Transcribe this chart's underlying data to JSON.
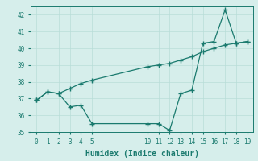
{
  "xlabel": "Humidex (Indice chaleur)",
  "background_color": "#d6eeeb",
  "line_color": "#1a7a6e",
  "grid_color": "#b8ddd8",
  "x_line1": [
    0,
    1,
    2,
    3,
    4,
    5,
    10,
    11,
    12,
    13,
    14,
    15,
    16,
    17,
    18,
    19
  ],
  "y_line1": [
    36.9,
    37.4,
    37.3,
    36.5,
    36.6,
    35.5,
    35.5,
    35.5,
    35.1,
    37.3,
    37.5,
    40.3,
    40.4,
    42.3,
    40.3,
    40.4
  ],
  "x_line2": [
    0,
    1,
    2,
    3,
    4,
    5,
    10,
    11,
    12,
    13,
    14,
    15,
    16,
    17,
    18,
    19
  ],
  "y_line2": [
    36.9,
    37.4,
    37.3,
    37.6,
    37.9,
    38.1,
    38.9,
    39.0,
    39.1,
    39.3,
    39.5,
    39.8,
    40.0,
    40.2,
    40.3,
    40.4
  ],
  "ylim": [
    35,
    42.5
  ],
  "xlim": [
    -0.5,
    19.5
  ],
  "yticks": [
    35,
    36,
    37,
    38,
    39,
    40,
    41,
    42
  ],
  "xticks": [
    0,
    1,
    2,
    3,
    4,
    5,
    10,
    11,
    12,
    13,
    14,
    15,
    16,
    17,
    18,
    19
  ],
  "marker": "+",
  "markersize": 4,
  "linewidth": 0.9,
  "tick_fontsize": 5.5,
  "xlabel_fontsize": 7
}
